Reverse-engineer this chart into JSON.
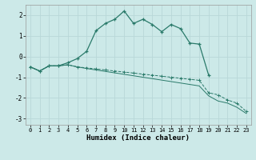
{
  "xlabel": "Humidex (Indice chaleur)",
  "background_color": "#cce9e8",
  "grid_color": "#b8d8d8",
  "line_color": "#2a7a6a",
  "xlim": [
    -0.5,
    23.5
  ],
  "ylim": [
    -3.3,
    2.5
  ],
  "yticks": [
    -3,
    -2,
    -1,
    0,
    1,
    2
  ],
  "xticks": [
    0,
    1,
    2,
    3,
    4,
    5,
    6,
    7,
    8,
    9,
    10,
    11,
    12,
    13,
    14,
    15,
    16,
    17,
    18,
    19,
    20,
    21,
    22,
    23
  ],
  "series1_x": [
    0,
    1,
    2,
    3,
    4,
    5,
    6,
    7,
    8,
    9,
    10,
    11,
    12,
    13,
    14,
    15,
    16,
    17,
    18,
    19
  ],
  "series1_y": [
    -0.5,
    -0.7,
    -0.45,
    -0.45,
    -0.3,
    -0.1,
    0.25,
    1.25,
    1.6,
    1.8,
    2.2,
    1.6,
    1.8,
    1.55,
    1.2,
    1.55,
    1.35,
    0.65,
    0.6,
    -0.9
  ],
  "series2_x": [
    0,
    1,
    2,
    3,
    4,
    5,
    6,
    7,
    8,
    9,
    10,
    11,
    12,
    13,
    14,
    15,
    16,
    17,
    18,
    19,
    20,
    21,
    22,
    23
  ],
  "series2_y": [
    -0.5,
    -0.7,
    -0.45,
    -0.45,
    -0.4,
    -0.5,
    -0.55,
    -0.6,
    -0.65,
    -0.7,
    -0.75,
    -0.8,
    -0.85,
    -0.9,
    -0.95,
    -1.0,
    -1.05,
    -1.1,
    -1.15,
    -1.75,
    -1.85,
    -2.1,
    -2.25,
    -2.65
  ],
  "series3_x": [
    0,
    1,
    2,
    3,
    4,
    5,
    6,
    7,
    8,
    9,
    10,
    11,
    12,
    13,
    14,
    15,
    16,
    17,
    18,
    19,
    20,
    21,
    22,
    23
  ],
  "series3_y": [
    -0.5,
    -0.7,
    -0.45,
    -0.45,
    -0.4,
    -0.5,
    -0.58,
    -0.65,
    -0.72,
    -0.79,
    -0.86,
    -0.93,
    -1.0,
    -1.07,
    -1.14,
    -1.21,
    -1.28,
    -1.35,
    -1.42,
    -1.9,
    -2.15,
    -2.25,
    -2.45,
    -2.75
  ]
}
